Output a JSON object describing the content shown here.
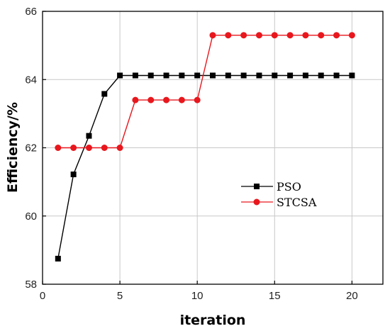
{
  "chart_data": {
    "type": "line",
    "xlabel": "iteration",
    "ylabel": "Efficiency/%",
    "xlim": [
      0,
      22
    ],
    "ylim": [
      58,
      66
    ],
    "xticks": [
      0,
      5,
      10,
      15,
      20
    ],
    "yticks": [
      58,
      60,
      62,
      64,
      66
    ],
    "grid": true,
    "legend_position": "center-right",
    "x": [
      1,
      2,
      3,
      4,
      5,
      6,
      7,
      8,
      9,
      10,
      11,
      12,
      13,
      14,
      15,
      16,
      17,
      18,
      19,
      20
    ],
    "series": [
      {
        "name": "PSO",
        "color": "#000000",
        "marker": "square",
        "values": [
          58.75,
          61.22,
          62.35,
          63.58,
          64.12,
          64.12,
          64.12,
          64.12,
          64.12,
          64.12,
          64.12,
          64.12,
          64.12,
          64.12,
          64.12,
          64.12,
          64.12,
          64.12,
          64.12,
          64.12
        ]
      },
      {
        "name": "STCSA",
        "color": "#e8171d",
        "marker": "circle",
        "values": [
          62.0,
          62.0,
          62.0,
          62.0,
          62.0,
          63.4,
          63.4,
          63.4,
          63.4,
          63.4,
          65.3,
          65.3,
          65.3,
          65.3,
          65.3,
          65.3,
          65.3,
          65.3,
          65.3,
          65.3
        ]
      }
    ]
  }
}
